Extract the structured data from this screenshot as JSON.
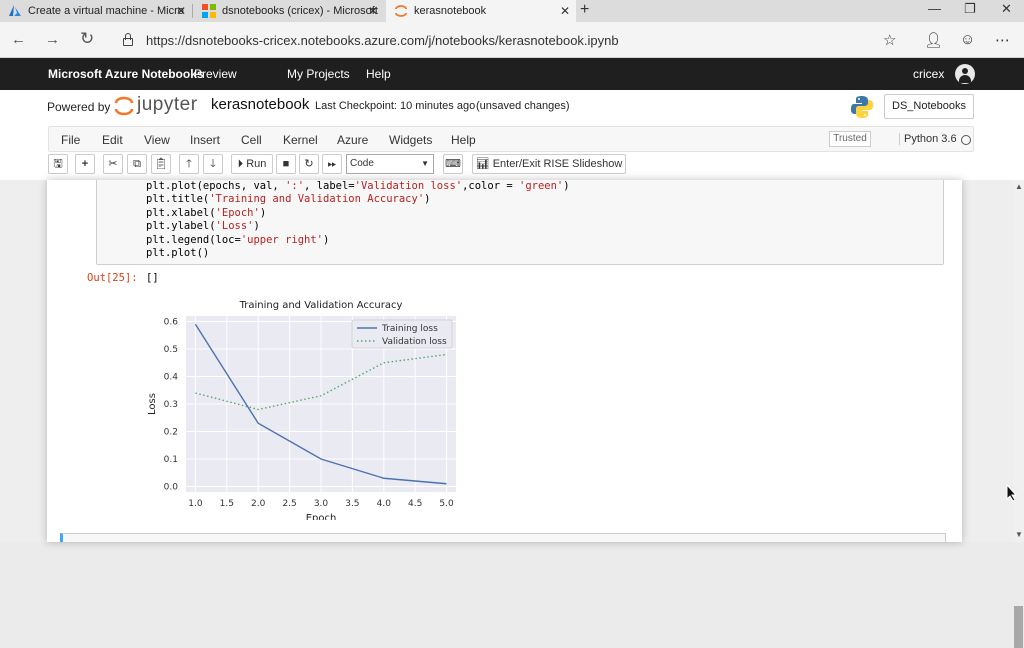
{
  "browser": {
    "tabs": [
      {
        "title": "Create a virtual machine - Micro",
        "icon": "azure-icon"
      },
      {
        "title": "dsnotebooks (cricex) - Microsoft",
        "icon": "microsoft-icon"
      },
      {
        "title": "kerasnotebook",
        "icon": "jupyter-icon",
        "active": true
      }
    ],
    "new_tab": "+",
    "url": "https://dsnotebooks-cricex.notebooks.azure.com/j/notebooks/kerasnotebook.ipynb"
  },
  "azure_header": {
    "brand": "Microsoft Azure Notebooks",
    "preview": "Preview",
    "menu": [
      "My Projects",
      "Help"
    ],
    "user": "cricex"
  },
  "jupyter_header": {
    "powered_by": "Powered by",
    "jupyter_word": "jupyter",
    "notebook_name": "kerasnotebook",
    "checkpoint": "Last Checkpoint: 10 minutes ago",
    "unsaved": "(unsaved changes)",
    "library_button": "DS_Notebooks"
  },
  "menubar": {
    "items": [
      "File",
      "Edit",
      "View",
      "Insert",
      "Cell",
      "Kernel",
      "Azure",
      "Widgets",
      "Help"
    ],
    "trusted": "Trusted",
    "kernel_name": "Python 3.6"
  },
  "toolbar": {
    "run_label": "Run",
    "cell_type": "Code",
    "rise_label": "Enter/Exit RISE Slideshow"
  },
  "code_lines": [
    [
      {
        "t": "plt.plot(epochs, val, "
      },
      {
        "t": "':'",
        "s": true
      },
      {
        "t": ", label="
      },
      {
        "t": "'Validation loss'",
        "s": true
      },
      {
        "t": ",color = "
      },
      {
        "t": "'green'",
        "s": true
      },
      {
        "t": ")"
      }
    ],
    [
      {
        "t": "plt.title("
      },
      {
        "t": "'Training and Validation Accuracy'",
        "s": true
      },
      {
        "t": ")"
      }
    ],
    [
      {
        "t": "plt.xlabel("
      },
      {
        "t": "'Epoch'",
        "s": true
      },
      {
        "t": ")"
      }
    ],
    [
      {
        "t": "plt.ylabel("
      },
      {
        "t": "'Loss'",
        "s": true
      },
      {
        "t": ")"
      }
    ],
    [
      {
        "t": "plt.legend(loc="
      },
      {
        "t": "'upper right'",
        "s": true
      },
      {
        "t": ")"
      }
    ],
    [
      {
        "t": "plt.plot()"
      }
    ]
  ],
  "output": {
    "prompt": "Out[25]:",
    "value": "[]"
  },
  "chart_data": {
    "type": "line",
    "title": "Training and Validation Accuracy",
    "xlabel": "Epoch",
    "ylabel": "Loss",
    "x": [
      1,
      2,
      3,
      4,
      5
    ],
    "series": [
      {
        "name": "Training loss",
        "values": [
          0.59,
          0.23,
          0.1,
          0.03,
          0.01
        ],
        "color": "#4c72b0",
        "style": "solid"
      },
      {
        "name": "Validation loss",
        "values": [
          0.34,
          0.28,
          0.33,
          0.45,
          0.48
        ],
        "color": "#55a868",
        "style": "dotted"
      }
    ],
    "xlim": [
      0.85,
      5.15
    ],
    "ylim": [
      -0.02,
      0.62
    ],
    "xticks": [
      1.0,
      1.5,
      2.0,
      2.5,
      3.0,
      3.5,
      4.0,
      4.5,
      5.0
    ],
    "yticks": [
      0.0,
      0.1,
      0.2,
      0.3,
      0.4,
      0.5,
      0.6
    ],
    "grid": true,
    "background": "#eaeaf2",
    "legend": "top-right"
  }
}
